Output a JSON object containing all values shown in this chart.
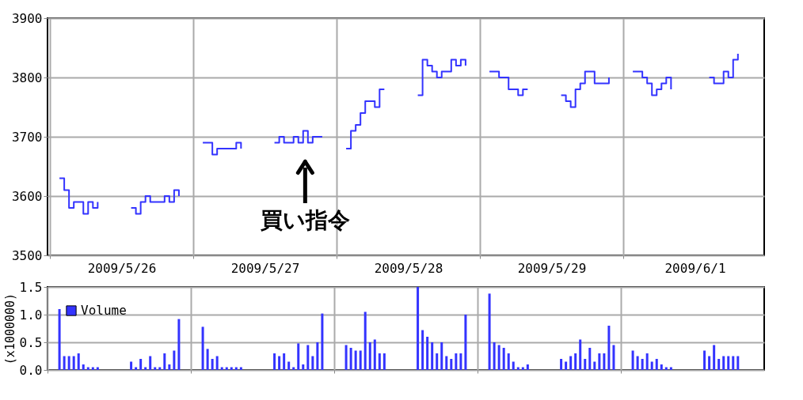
{
  "chart_data": [
    {
      "type": "step",
      "ylim": [
        3500,
        3900
      ],
      "yticks": [
        3500,
        3600,
        3700,
        3800,
        3900
      ],
      "categories": [
        null,
        null,
        null,
        null,
        null,
        null,
        null,
        null,
        null,
        null,
        null,
        null,
        null,
        null,
        null,
        "2009/5/26",
        null,
        null,
        null,
        null,
        null,
        null,
        null,
        null,
        null,
        null,
        null,
        null,
        null,
        null,
        null,
        null,
        null,
        null,
        null,
        null,
        null,
        null,
        null,
        null,
        null,
        null,
        null,
        null,
        null,
        "2009/5/27",
        null,
        null,
        null,
        null,
        null,
        null,
        null,
        null,
        null,
        null,
        null,
        null,
        null,
        null,
        null,
        null,
        null,
        null,
        null,
        null,
        null,
        null,
        null,
        null,
        null,
        null,
        null,
        null,
        null,
        "2009/5/28",
        null,
        null,
        null,
        null,
        null,
        null,
        null,
        null,
        null,
        null,
        null,
        null,
        null,
        null,
        null,
        null,
        null,
        null,
        null,
        null,
        null,
        null,
        null,
        null,
        null,
        null,
        null,
        null,
        null,
        "2009/5/29",
        null,
        null,
        null,
        null,
        null,
        null,
        null,
        null,
        null,
        null,
        null,
        null,
        null,
        null,
        null,
        null,
        null,
        null,
        null,
        null,
        null,
        null,
        null,
        null,
        null,
        null,
        null,
        null,
        null,
        "2009/6/1",
        null,
        null,
        null,
        null,
        null,
        null,
        null,
        null,
        null,
        null,
        null,
        null,
        null,
        null
      ],
      "grid": true,
      "legend": false,
      "line_style": "solid",
      "marker": "none",
      "annotations": [
        "買い指令"
      ],
      "series": [
        {
          "color": "#3333ff",
          "values": [
            null,
            null,
            3630,
            3610,
            3580,
            3590,
            3590,
            3570,
            3590,
            3580,
            3590,
            null,
            null,
            null,
            null,
            null,
            null,
            3580,
            3570,
            3590,
            3600,
            3590,
            3590,
            3590,
            3600,
            3590,
            3610,
            3600,
            null,
            null,
            null,
            null,
            3690,
            3690,
            3670,
            3680,
            3680,
            3680,
            3680,
            3690,
            3680,
            null,
            null,
            null,
            null,
            null,
            null,
            3690,
            3700,
            3690,
            3690,
            3700,
            3690,
            3710,
            3690,
            3700,
            3700,
            3700,
            null,
            null,
            null,
            null,
            3680,
            3710,
            3720,
            3740,
            3760,
            3760,
            3750,
            3780,
            3780,
            null,
            null,
            null,
            null,
            null,
            null,
            3770,
            3830,
            3820,
            3810,
            3800,
            3810,
            3810,
            3830,
            3820,
            3830,
            3820,
            null,
            null,
            null,
            null,
            3810,
            3810,
            3800,
            3800,
            3780,
            3780,
            3770,
            3780,
            3780,
            null,
            null,
            null,
            null,
            null,
            null,
            3770,
            3760,
            3750,
            3780,
            3790,
            3810,
            3810,
            3790,
            3790,
            3790,
            3800,
            null,
            null,
            null,
            null,
            3810,
            3810,
            3800,
            3790,
            3770,
            3780,
            3790,
            3800,
            3780,
            null,
            null,
            null,
            null,
            null,
            null,
            null,
            3800,
            3790,
            3790,
            3810,
            3800,
            3830,
            3840,
            null,
            null,
            null,
            null,
            null
          ]
        }
      ]
    },
    {
      "type": "bar",
      "ylim": [
        0,
        1.5
      ],
      "yticks": [
        {
          "value": 0,
          "label": "0.0"
        },
        0.5,
        {
          "value": 1,
          "label": "1.0"
        },
        1.5
      ],
      "categories": [
        null,
        null,
        null,
        null,
        null,
        null,
        null,
        null,
        null,
        null,
        null,
        null,
        null,
        null,
        null,
        "2009/5/26",
        null,
        null,
        null,
        null,
        null,
        null,
        null,
        null,
        null,
        null,
        null,
        null,
        null,
        null,
        null,
        null,
        null,
        null,
        null,
        null,
        null,
        null,
        null,
        null,
        null,
        null,
        null,
        null,
        null,
        "2009/5/27",
        null,
        null,
        null,
        null,
        null,
        null,
        null,
        null,
        null,
        null,
        null,
        null,
        null,
        null,
        null,
        null,
        null,
        null,
        null,
        null,
        null,
        null,
        null,
        null,
        null,
        null,
        null,
        null,
        null,
        "2009/5/28",
        null,
        null,
        null,
        null,
        null,
        null,
        null,
        null,
        null,
        null,
        null,
        null,
        null,
        null,
        null,
        null,
        null,
        null,
        null,
        null,
        null,
        null,
        null,
        null,
        null,
        null,
        null,
        null,
        null,
        "2009/5/29",
        null,
        null,
        null,
        null,
        null,
        null,
        null,
        null,
        null,
        null,
        null,
        null,
        null,
        null,
        null,
        null,
        null,
        null,
        null,
        null,
        null,
        null,
        null,
        null,
        null,
        null,
        null,
        null,
        null,
        "2009/6/1",
        null,
        null,
        null,
        null,
        null,
        null,
        null,
        null,
        null,
        null,
        null,
        null,
        null,
        null
      ],
      "ylabel": "(x1000000)",
      "grid": true,
      "legend": "top left",
      "tick_labels": "y",
      "series": [
        {
          "name": "Volume",
          "color": "#3333ff",
          "values": [
            null,
            null,
            1.1,
            0.25,
            0.25,
            0.25,
            0.3,
            0.1,
            0.05,
            0.05,
            0.05,
            null,
            null,
            null,
            null,
            null,
            null,
            0.15,
            0.05,
            0.2,
            0.05,
            0.25,
            0.05,
            0.05,
            0.3,
            0.1,
            0.35,
            0.92,
            null,
            null,
            null,
            null,
            0.78,
            0.38,
            0.2,
            0.25,
            0.05,
            0.05,
            0.05,
            0.05,
            0.05,
            null,
            null,
            null,
            null,
            null,
            null,
            0.3,
            0.25,
            0.3,
            0.15,
            0.05,
            0.48,
            0.1,
            0.45,
            0.25,
            0.5,
            1.02,
            null,
            null,
            null,
            null,
            0.45,
            0.4,
            0.35,
            0.35,
            1.05,
            0.5,
            0.55,
            0.3,
            0.3,
            null,
            null,
            null,
            null,
            null,
            null,
            1.5,
            0.72,
            0.6,
            0.5,
            0.3,
            0.5,
            0.25,
            0.2,
            0.3,
            0.3,
            1.0,
            null,
            null,
            null,
            null,
            1.38,
            0.5,
            0.45,
            0.4,
            0.3,
            0.15,
            0.05,
            0.05,
            0.1,
            null,
            null,
            null,
            null,
            null,
            null,
            0.2,
            0.15,
            0.25,
            0.3,
            0.55,
            0.2,
            0.4,
            0.15,
            0.3,
            0.3,
            0.8,
            0.45,
            null,
            null,
            null,
            0.35,
            0.25,
            0.2,
            0.3,
            0.15,
            0.2,
            0.1,
            0.05,
            0.05,
            null,
            null,
            null,
            null,
            null,
            null,
            0.35,
            0.25,
            0.45,
            0.2,
            0.25,
            0.25,
            0.25,
            0.25,
            null,
            null,
            null,
            null,
            null
          ]
        }
      ]
    }
  ]
}
